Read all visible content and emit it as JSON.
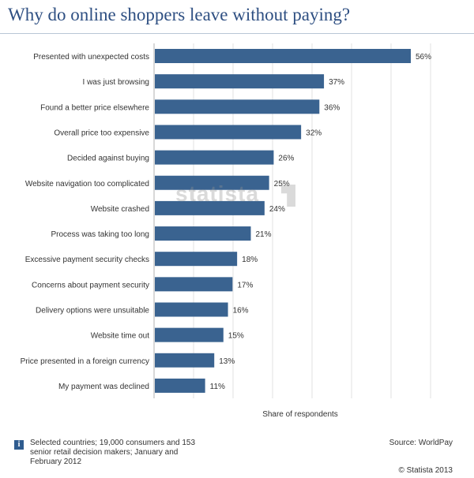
{
  "title": "Why do online shoppers leave without paying?",
  "chart_data": {
    "type": "bar",
    "orientation": "horizontal",
    "categories": [
      "Presented with unexpected costs",
      "I was just browsing",
      "Found a better price elsewhere",
      "Overall price too expensive",
      "Decided against buying",
      "Website navigation too complicated",
      "Website crashed",
      "Process was taking too long",
      "Excessive payment security checks",
      "Concerns about payment security",
      "Delivery options were unsuitable",
      "Website time out",
      "Price presented in a foreign currency",
      "My payment was declined"
    ],
    "values": [
      56,
      37,
      36,
      32,
      26,
      25,
      24,
      21,
      18,
      17,
      16,
      15,
      13,
      11
    ],
    "value_labels": [
      "56%",
      "37%",
      "36%",
      "32%",
      "26%",
      "25%",
      "24%",
      "21%",
      "18%",
      "17%",
      "16%",
      "15%",
      "13%",
      "11%"
    ],
    "xlabel": "Share of respondents",
    "xlim": [
      0,
      60
    ],
    "grid": true,
    "bar_color": "#3a6390"
  },
  "footer": {
    "note_icon": "i",
    "note": "Selected countries; 19,000 consumers and 153 senior retail decision makers; January and February 2012",
    "source": "Source: WorldPay",
    "copyright": "© Statista 2013"
  },
  "watermark": "statista"
}
